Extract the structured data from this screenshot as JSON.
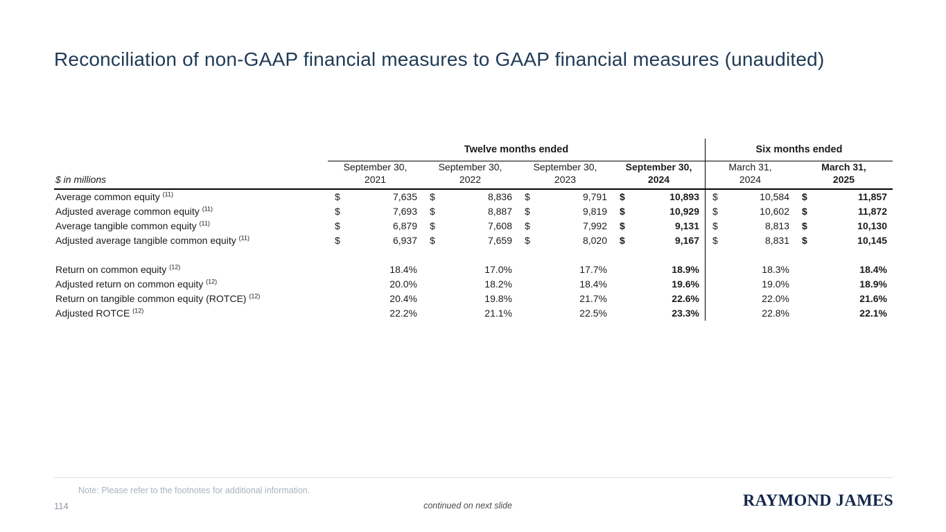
{
  "slide": {
    "title": "Reconciliation of non-GAAP financial measures to GAAP financial measures (unaudited)",
    "footer_note": "Note: Please refer to the footnotes for additional information.",
    "page_number": "114",
    "continued": "continued on next slide",
    "logo": "RAYMOND JAMES"
  },
  "table": {
    "unit_label": "$ in millions",
    "currency_symbol": "$",
    "groups": [
      {
        "label": "Twelve months ended",
        "span": 4
      },
      {
        "label": "Six months ended",
        "span": 2
      }
    ],
    "columns": [
      {
        "line1": "September 30,",
        "line2": "2021",
        "bold": false
      },
      {
        "line1": "September 30,",
        "line2": "2022",
        "bold": false
      },
      {
        "line1": "September 30,",
        "line2": "2023",
        "bold": false
      },
      {
        "line1": "September 30,",
        "line2": "2024",
        "bold": true
      },
      {
        "line1": "March 31,",
        "line2": "2024",
        "bold": false
      },
      {
        "line1": "March 31,",
        "line2": "2025",
        "bold": true
      }
    ],
    "dollar_rows": [
      {
        "label": "Average common equity",
        "sup": "(11)",
        "values": [
          "7,635",
          "8,836",
          "9,791",
          "10,893",
          "10,584",
          "11,857"
        ]
      },
      {
        "label": "Adjusted average common equity",
        "sup": "(11)",
        "values": [
          "7,693",
          "8,887",
          "9,819",
          "10,929",
          "10,602",
          "11,872"
        ]
      },
      {
        "label": "Average tangible common equity",
        "sup": "(11)",
        "values": [
          "6,879",
          "7,608",
          "7,992",
          "9,131",
          "8,813",
          "10,130"
        ]
      },
      {
        "label": "Adjusted average tangible common equity",
        "sup": "(11)",
        "values": [
          "6,937",
          "7,659",
          "8,020",
          "9,167",
          "8,831",
          "10,145"
        ]
      }
    ],
    "percent_rows": [
      {
        "label": "Return on common equity",
        "sup": "(12)",
        "values": [
          "18.4%",
          "17.0%",
          "17.7%",
          "18.9%",
          "18.3%",
          "18.4%"
        ]
      },
      {
        "label": "Adjusted return on common equity",
        "sup": "(12)",
        "values": [
          "20.0%",
          "18.2%",
          "18.4%",
          "19.6%",
          "19.0%",
          "18.9%"
        ]
      },
      {
        "label": "Return on tangible common equity (ROTCE)",
        "sup": "(12)",
        "values": [
          "20.4%",
          "19.8%",
          "21.7%",
          "22.6%",
          "22.0%",
          "21.6%"
        ]
      },
      {
        "label": "Adjusted ROTCE",
        "sup": "(12)",
        "values": [
          "22.2%",
          "21.1%",
          "22.5%",
          "23.3%",
          "22.8%",
          "22.1%"
        ]
      }
    ]
  },
  "colors": {
    "title_navy": "#1F3A55",
    "logo_navy": "#14284B",
    "table_text": "#1A1A1A",
    "table_rule_black": "#000000",
    "footnote_gray": "#A9B3C0",
    "page_number_gray": "#8D99A6",
    "continued_gray": "#4A4A4A",
    "footer_rule_gray": "#D9DDE2",
    "background": "#FFFFFF"
  }
}
